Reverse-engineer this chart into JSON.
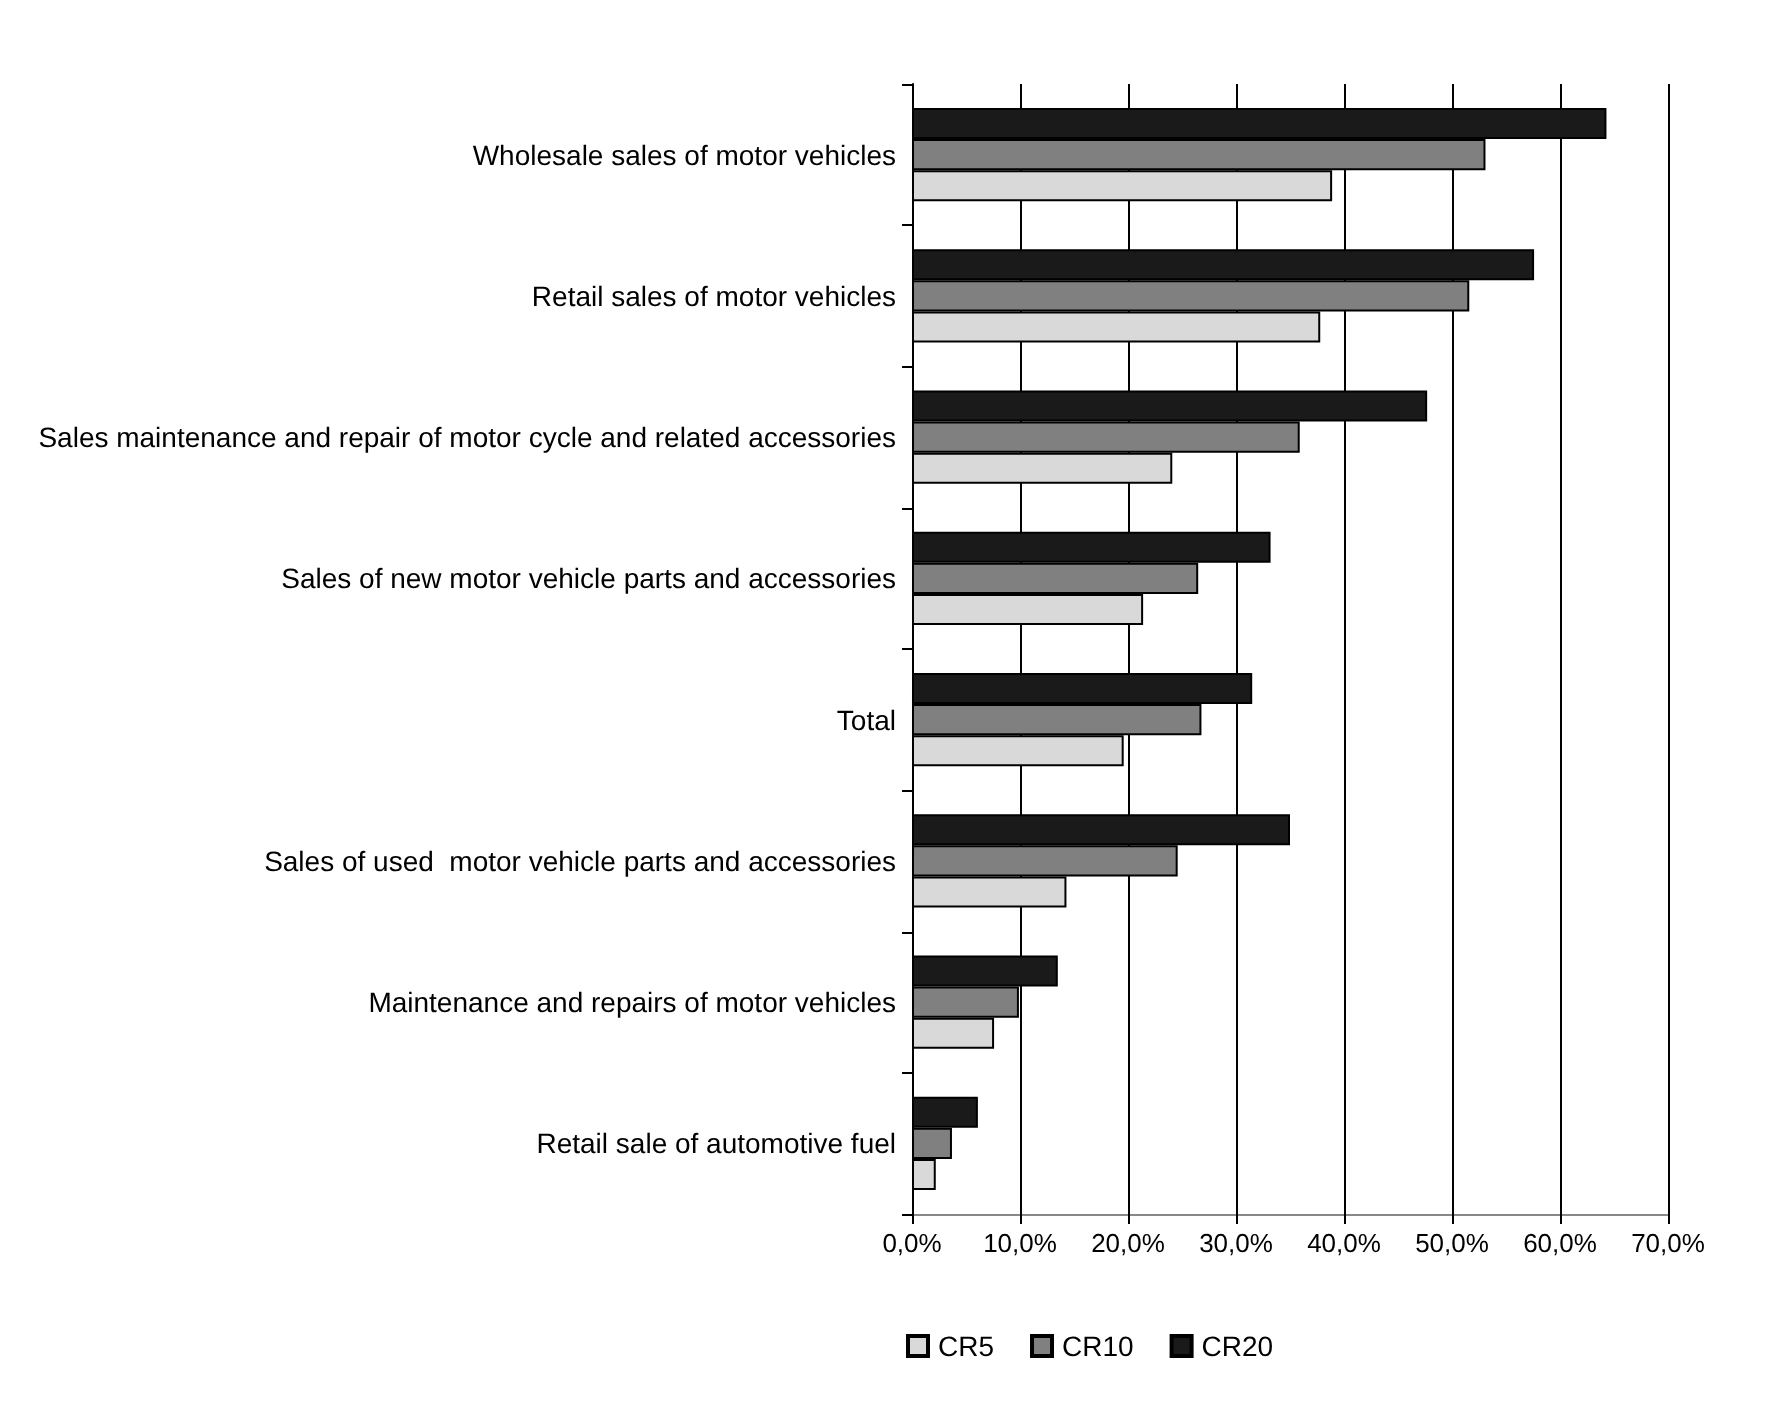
{
  "chart_data": {
    "type": "bar",
    "orientation": "horizontal",
    "categories": [
      "Wholesale sales of motor vehicles",
      "Retail sales of motor vehicles",
      "Sales maintenance and repair of motor cycle and related accessories",
      "Sales of new motor vehicle parts and accessories",
      "Total",
      "Sales of used  motor vehicle parts and accessories",
      "Maintenance and repairs of motor vehicles",
      "Retail sale of automotive fuel"
    ],
    "series": [
      {
        "name": "CR5",
        "color": "#d9d9d9",
        "values": [
          38.9,
          37.8,
          24.1,
          21.4,
          19.6,
          14.3,
          7.6,
          2.2
        ]
      },
      {
        "name": "CR10",
        "color": "#808080",
        "values": [
          53.1,
          51.6,
          35.9,
          26.5,
          26.8,
          24.6,
          9.9,
          3.7
        ]
      },
      {
        "name": "CR20",
        "color": "#1a1a1a",
        "values": [
          64.3,
          57.6,
          47.7,
          33.2,
          31.5,
          35.0,
          13.5,
          6.1
        ]
      }
    ],
    "xlim": [
      0,
      70
    ],
    "xticks": [
      {
        "value": 0,
        "label": "0,0%"
      },
      {
        "value": 10,
        "label": "10,0%"
      },
      {
        "value": 20,
        "label": "20,0%"
      },
      {
        "value": 30,
        "label": "30,0%"
      },
      {
        "value": 40,
        "label": "40,0%"
      },
      {
        "value": 50,
        "label": "50,0%"
      },
      {
        "value": 60,
        "label": "60,0%"
      },
      {
        "value": 70,
        "label": "70,0%"
      }
    ],
    "grid": "x",
    "legend": "bottom"
  }
}
